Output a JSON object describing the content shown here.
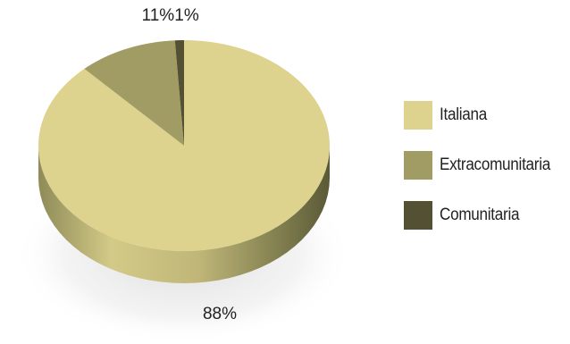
{
  "chart_data": {
    "type": "pie",
    "title": "",
    "legend_position": "right",
    "slices": [
      {
        "label": "Italiana",
        "value": 88,
        "display": "88%",
        "color": "#ddd38f",
        "side_color": "#6b6a43"
      },
      {
        "label": "Extracomunitaria",
        "value": 11,
        "display": "11%",
        "color": "#a09c63",
        "side_color": "#5f5d3a"
      },
      {
        "label": "Comunitaria",
        "value": 1,
        "display": "1%",
        "color": "#545033",
        "side_color": "#3a3822"
      }
    ]
  }
}
